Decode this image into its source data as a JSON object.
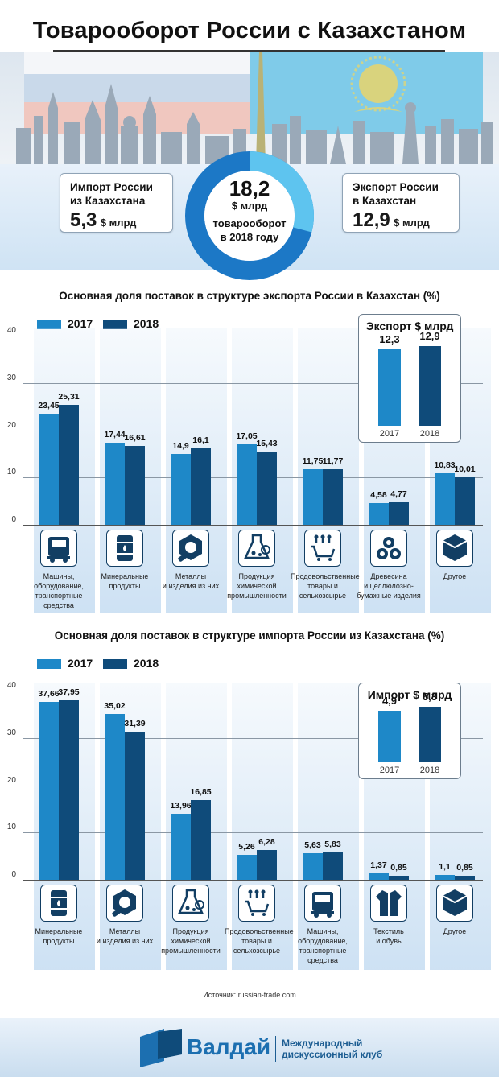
{
  "title": "Товарооборот России с Казахстаном",
  "colors": {
    "y2017": "#1e88c8",
    "y2018": "#0f4b7a",
    "accent": "#1c6fb0",
    "light": "#5ec4ef"
  },
  "summary": {
    "import": {
      "label_line1": "Импорт России",
      "label_line2": "из Казахстана",
      "value": "5,3",
      "unit": "$ млрд"
    },
    "export": {
      "label_line1": "Экспорт России",
      "label_line2": "в Казахстан",
      "value": "12,9",
      "unit": "$ млрд"
    },
    "total": {
      "value": "18,2",
      "unit": "$ млрд",
      "line1": "товарооборот",
      "line2": "в 2018 году",
      "import_share": 5.3,
      "total": 18.2
    }
  },
  "chart_data": [
    {
      "type": "bar",
      "title": "Основная доля поставок в структуре экспорта России в Казахстан (%)",
      "legend": [
        "2017",
        "2018"
      ],
      "ylim": [
        0,
        40
      ],
      "yticks": [
        "0",
        "10",
        "20",
        "30",
        "40"
      ],
      "categories": [
        {
          "name": "Машины, оборудование, транспортные средства",
          "lines": [
            "Машины,",
            "оборудование,",
            "транспортные",
            "средства"
          ],
          "icon": "truck-icon"
        },
        {
          "name": "Минеральные продукты",
          "lines": [
            "Минеральные",
            "продукты"
          ],
          "icon": "oil-barrel-icon"
        },
        {
          "name": "Металлы и изделия из них",
          "lines": [
            "Металлы",
            "и изделия из них"
          ],
          "icon": "metal-nut-icon"
        },
        {
          "name": "Продукция химической промышленности",
          "lines": [
            "Продукция",
            "химической",
            "промышленности"
          ],
          "icon": "chemistry-flask-icon"
        },
        {
          "name": "Продовольственные товары и сельхозсырье",
          "lines": [
            "Продовольственные",
            "товары и",
            "сельхозсырье"
          ],
          "icon": "grocery-cart-icon"
        },
        {
          "name": "Древесина и целлюлозно-бумажные изделия",
          "lines": [
            "Древесина",
            "и целлюлозно-",
            "бумажные изделия"
          ],
          "icon": "timber-logs-icon"
        },
        {
          "name": "Другое",
          "lines": [
            "Другое"
          ],
          "icon": "cube-icon"
        }
      ],
      "series": [
        {
          "name": "2017",
          "values": [
            23.45,
            17.44,
            14.9,
            17.05,
            11.75,
            4.58,
            10.83
          ],
          "labels": [
            "23,45",
            "17,44",
            "14,9",
            "17,05",
            "11,75",
            "4,58",
            "10,83"
          ]
        },
        {
          "name": "2018",
          "values": [
            25.31,
            16.61,
            16.1,
            15.43,
            11.77,
            4.77,
            10.01
          ],
          "labels": [
            "25,31",
            "16,61",
            "16,1",
            "15,43",
            "11,77",
            "4,77",
            "10,01"
          ]
        }
      ],
      "inset": {
        "title": "Экспорт $ млрд",
        "years": [
          "2017",
          "2018"
        ],
        "values": [
          12.3,
          12.9
        ],
        "labels": [
          "12,3",
          "12,9"
        ]
      }
    },
    {
      "type": "bar",
      "title": "Основная доля поставок в структуре импорта России из Казахстана (%)",
      "legend": [
        "2017",
        "2018"
      ],
      "ylim": [
        0,
        40
      ],
      "yticks": [
        "0",
        "10",
        "20",
        "30",
        "40"
      ],
      "categories": [
        {
          "name": "Минеральные продукты",
          "lines": [
            "Минеральные",
            "продукты"
          ],
          "icon": "oil-barrel-icon"
        },
        {
          "name": "Металлы и изделия из них",
          "lines": [
            "Металлы",
            "и изделия из них"
          ],
          "icon": "metal-nut-icon"
        },
        {
          "name": "Продукция химической промышленности",
          "lines": [
            "Продукция",
            "химической",
            "промышленности"
          ],
          "icon": "chemistry-flask-icon"
        },
        {
          "name": "Продовольственные товары и сельхозсырье",
          "lines": [
            "Продовольственные",
            "товары и",
            "сельхозсырье"
          ],
          "icon": "grocery-cart-icon"
        },
        {
          "name": "Машины, оборудование, транспортные средства",
          "lines": [
            "Машины,",
            "оборудование,",
            "транспортные",
            "средства"
          ],
          "icon": "truck-icon"
        },
        {
          "name": "Текстиль и обувь",
          "lines": [
            "Текстиль",
            "и обувь"
          ],
          "icon": "clothing-icon"
        },
        {
          "name": "Другое",
          "lines": [
            "Другое"
          ],
          "icon": "cube-icon"
        }
      ],
      "series": [
        {
          "name": "2017",
          "values": [
            37.66,
            35.02,
            13.96,
            5.26,
            5.63,
            1.37,
            1.1
          ],
          "labels": [
            "37,66",
            "35,02",
            "13,96",
            "5,26",
            "5,63",
            "1,37",
            "1,1"
          ]
        },
        {
          "name": "2018",
          "values": [
            37.95,
            31.39,
            16.85,
            6.28,
            5.83,
            0.85,
            0.85
          ],
          "labels": [
            "37,95",
            "31,39",
            "16,85",
            "6,28",
            "5,83",
            "0,85",
            "0,85"
          ]
        }
      ],
      "inset": {
        "title": "Импорт $ млрд",
        "years": [
          "2017",
          "2018"
        ],
        "values": [
          4.9,
          5.3
        ],
        "labels": [
          "4,9",
          "5,3"
        ]
      }
    }
  ],
  "source": "Источник: russian-trade.com",
  "footer": {
    "brand": "Валдай",
    "sub_line1": "Международный",
    "sub_line2": "дискуссионный клуб"
  }
}
